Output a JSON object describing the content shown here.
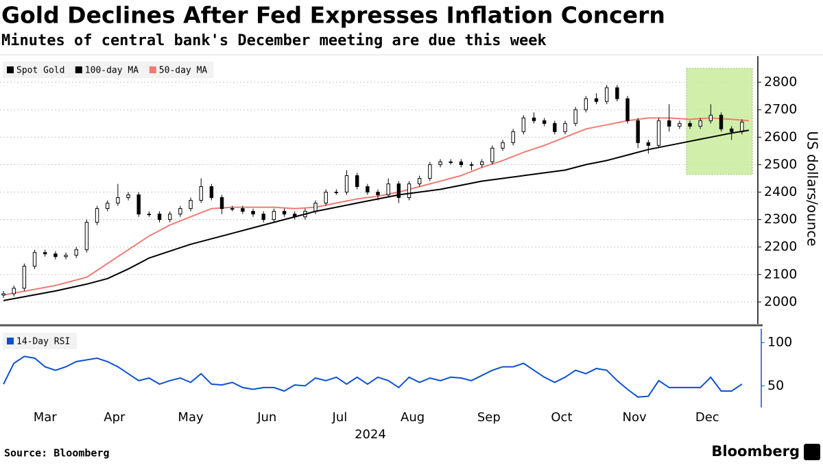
{
  "title": "Gold Declines After Fed Expresses Inflation Concern",
  "subtitle": "Minutes of central bank's December meeting are due this week",
  "source": "Source: Bloomberg",
  "logo": "Bloomberg",
  "chart_data": [
    {
      "type": "candlestick",
      "ylabel": "US dollars/ounce",
      "xlim": [
        -1,
        216
      ],
      "ylim": [
        1920,
        2895
      ],
      "yticks": [
        2000,
        2100,
        2200,
        2300,
        2400,
        2500,
        2600,
        2700,
        2800
      ],
      "grid": true,
      "legend": "top-left",
      "highlight": {
        "x": [
          197,
          216
        ],
        "y": [
          2465,
          2850
        ],
        "color": "#c9ec9b"
      },
      "candles": {
        "name": "Spot Gold",
        "color": "#000000",
        "x": [
          0,
          3,
          6,
          9,
          12,
          15,
          18,
          21,
          24,
          27,
          30,
          33,
          36,
          39,
          42,
          45,
          48,
          51,
          54,
          57,
          60,
          63,
          66,
          69,
          72,
          75,
          78,
          81,
          84,
          87,
          90,
          93,
          96,
          99,
          102,
          105,
          108,
          111,
          114,
          117,
          120,
          123,
          126,
          129,
          132,
          135,
          138,
          141,
          144,
          147,
          150,
          153,
          156,
          159,
          162,
          165,
          168,
          171,
          174,
          177,
          180,
          183,
          186,
          189,
          192,
          195,
          198,
          201,
          204,
          207,
          210,
          213
        ],
        "open": [
          2025,
          2030,
          2050,
          2130,
          2180,
          2175,
          2165,
          2170,
          2190,
          2290,
          2340,
          2360,
          2380,
          2390,
          2320,
          2320,
          2300,
          2320,
          2340,
          2370,
          2420,
          2380,
          2340,
          2340,
          2330,
          2320,
          2300,
          2330,
          2320,
          2310,
          2330,
          2360,
          2400,
          2400,
          2460,
          2420,
          2400,
          2390,
          2430,
          2380,
          2430,
          2450,
          2500,
          2510,
          2510,
          2500,
          2500,
          2510,
          2560,
          2580,
          2620,
          2670,
          2660,
          2650,
          2620,
          2650,
          2700,
          2740,
          2730,
          2780,
          2740,
          2660,
          2580,
          2570,
          2660,
          2640,
          2650,
          2640,
          2660,
          2680,
          2630,
          2620
        ],
        "high": [
          2040,
          2060,
          2140,
          2190,
          2190,
          2185,
          2180,
          2200,
          2300,
          2350,
          2370,
          2430,
          2400,
          2400,
          2330,
          2330,
          2330,
          2350,
          2380,
          2450,
          2430,
          2390,
          2350,
          2350,
          2340,
          2330,
          2340,
          2340,
          2330,
          2340,
          2370,
          2410,
          2410,
          2480,
          2470,
          2430,
          2410,
          2450,
          2440,
          2440,
          2460,
          2510,
          2520,
          2520,
          2520,
          2510,
          2520,
          2570,
          2590,
          2630,
          2680,
          2690,
          2670,
          2660,
          2660,
          2710,
          2750,
          2760,
          2790,
          2790,
          2750,
          2670,
          2590,
          2670,
          2720,
          2660,
          2660,
          2670,
          2720,
          2690,
          2640,
          2665
        ],
        "low": [
          2015,
          2020,
          2040,
          2120,
          2165,
          2155,
          2155,
          2160,
          2180,
          2280,
          2330,
          2350,
          2370,
          2310,
          2310,
          2290,
          2290,
          2310,
          2330,
          2360,
          2370,
          2320,
          2330,
          2320,
          2310,
          2290,
          2290,
          2310,
          2300,
          2300,
          2320,
          2350,
          2390,
          2390,
          2410,
          2390,
          2370,
          2380,
          2360,
          2370,
          2420,
          2440,
          2490,
          2500,
          2490,
          2480,
          2490,
          2500,
          2550,
          2570,
          2610,
          2650,
          2640,
          2610,
          2610,
          2640,
          2690,
          2720,
          2720,
          2730,
          2650,
          2560,
          2540,
          2560,
          2620,
          2630,
          2630,
          2630,
          2650,
          2620,
          2590,
          2610
        ],
        "close": [
          2030,
          2050,
          2130,
          2180,
          2175,
          2165,
          2170,
          2190,
          2290,
          2340,
          2360,
          2380,
          2390,
          2320,
          2320,
          2300,
          2320,
          2340,
          2370,
          2420,
          2380,
          2340,
          2340,
          2330,
          2320,
          2300,
          2330,
          2320,
          2310,
          2330,
          2360,
          2400,
          2400,
          2460,
          2420,
          2400,
          2390,
          2430,
          2380,
          2430,
          2450,
          2500,
          2510,
          2510,
          2500,
          2500,
          2510,
          2560,
          2580,
          2620,
          2670,
          2660,
          2650,
          2620,
          2650,
          2700,
          2740,
          2730,
          2780,
          2740,
          2660,
          2580,
          2570,
          2660,
          2640,
          2650,
          2640,
          2660,
          2680,
          2630,
          2620,
          2655
        ]
      },
      "series": [
        {
          "name": "100-day MA",
          "color": "#000000",
          "x": [
            0,
            15,
            24,
            30,
            36,
            42,
            48,
            54,
            60,
            66,
            72,
            78,
            84,
            90,
            96,
            102,
            108,
            114,
            120,
            126,
            132,
            138,
            144,
            150,
            156,
            162,
            168,
            174,
            180,
            186,
            192,
            198,
            204,
            210,
            215
          ],
          "values": [
            2005,
            2040,
            2065,
            2085,
            2120,
            2160,
            2185,
            2210,
            2230,
            2250,
            2270,
            2290,
            2310,
            2330,
            2345,
            2360,
            2375,
            2390,
            2400,
            2410,
            2425,
            2440,
            2450,
            2460,
            2470,
            2480,
            2500,
            2515,
            2535,
            2555,
            2570,
            2585,
            2600,
            2615,
            2625
          ]
        },
        {
          "name": "50-day MA",
          "color": "#f07b72",
          "x": [
            0,
            15,
            24,
            30,
            36,
            42,
            48,
            54,
            60,
            66,
            72,
            78,
            84,
            90,
            96,
            102,
            108,
            114,
            120,
            126,
            132,
            138,
            144,
            150,
            156,
            162,
            168,
            174,
            180,
            186,
            192,
            198,
            204,
            210,
            215
          ],
          "values": [
            2025,
            2060,
            2090,
            2140,
            2190,
            2240,
            2280,
            2310,
            2340,
            2345,
            2345,
            2345,
            2340,
            2345,
            2360,
            2375,
            2385,
            2400,
            2420,
            2440,
            2460,
            2490,
            2515,
            2545,
            2570,
            2600,
            2630,
            2645,
            2660,
            2670,
            2670,
            2665,
            2670,
            2665,
            2660
          ]
        }
      ]
    },
    {
      "type": "line",
      "xlim": [
        -1,
        216
      ],
      "ylim": [
        25,
        116
      ],
      "yticks": [
        50,
        100
      ],
      "xticks": [
        {
          "value": 12,
          "label": "Mar"
        },
        {
          "value": 32,
          "label": "Apr"
        },
        {
          "value": 54,
          "label": "May"
        },
        {
          "value": 76,
          "label": "Jun"
        },
        {
          "value": 97,
          "label": "Jul"
        },
        {
          "value": 118,
          "label": "Aug"
        },
        {
          "value": 140,
          "label": "Sep"
        },
        {
          "value": 161,
          "label": "Oct"
        },
        {
          "value": 182,
          "label": "Nov"
        },
        {
          "value": 203,
          "label": "Dec"
        }
      ],
      "xlabel": "2024",
      "legend": "top-left",
      "series": [
        {
          "name": "14-Day RSI",
          "color": "#0b4fd1",
          "x": [
            0,
            3,
            6,
            9,
            12,
            15,
            18,
            21,
            24,
            27,
            30,
            33,
            36,
            39,
            42,
            45,
            48,
            51,
            54,
            57,
            60,
            63,
            66,
            69,
            72,
            75,
            78,
            81,
            84,
            87,
            90,
            93,
            96,
            99,
            102,
            105,
            108,
            111,
            114,
            117,
            120,
            123,
            126,
            129,
            132,
            135,
            138,
            141,
            144,
            147,
            150,
            153,
            156,
            159,
            162,
            165,
            168,
            171,
            174,
            177,
            180,
            183,
            186,
            189,
            192,
            195,
            198,
            201,
            204,
            207,
            210,
            213
          ],
          "values": [
            52,
            76,
            84,
            82,
            72,
            68,
            72,
            78,
            80,
            82,
            78,
            72,
            64,
            56,
            59,
            52,
            56,
            59,
            54,
            64,
            52,
            51,
            54,
            48,
            46,
            48,
            48,
            44,
            51,
            50,
            59,
            56,
            60,
            52,
            60,
            52,
            60,
            56,
            48,
            60,
            54,
            59,
            56,
            60,
            59,
            56,
            62,
            68,
            72,
            72,
            76,
            68,
            60,
            54,
            60,
            68,
            64,
            70,
            68,
            56,
            46,
            37,
            38,
            56,
            48,
            48,
            48,
            48,
            60,
            44,
            44,
            52
          ]
        }
      ]
    }
  ]
}
